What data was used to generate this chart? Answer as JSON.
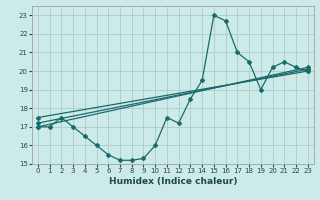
{
  "xlabel": "Humidex (Indice chaleur)",
  "xlim": [
    -0.5,
    23.5
  ],
  "ylim": [
    15,
    23.5
  ],
  "background_color": "#cceae8",
  "grid_color": "#aacccc",
  "line_color": "#1a6b6b",
  "xticks": [
    0,
    1,
    2,
    3,
    4,
    5,
    6,
    7,
    8,
    9,
    10,
    11,
    12,
    13,
    14,
    15,
    16,
    17,
    18,
    19,
    20,
    21,
    22,
    23
  ],
  "yticks": [
    15,
    16,
    17,
    18,
    19,
    20,
    21,
    22,
    23
  ],
  "lines": [
    {
      "x": [
        0,
        1,
        2,
        3,
        4,
        5,
        6,
        7,
        8,
        9,
        10,
        11,
        12,
        13,
        14,
        15,
        16,
        17,
        18,
        19,
        20,
        21,
        22,
        23
      ],
      "y": [
        17,
        17,
        17.5,
        17,
        16.5,
        16,
        15.5,
        15.2,
        15.2,
        15.3,
        16,
        17.5,
        17.2,
        18.5,
        19.5,
        23,
        22.7,
        21,
        20.5,
        19,
        20.2,
        20.5,
        20.2,
        20
      ]
    },
    {
      "x": [
        0,
        23
      ],
      "y": [
        17,
        20.2
      ]
    },
    {
      "x": [
        0,
        23
      ],
      "y": [
        17.2,
        20.1
      ]
    },
    {
      "x": [
        0,
        23
      ],
      "y": [
        17.5,
        20.0
      ]
    }
  ]
}
